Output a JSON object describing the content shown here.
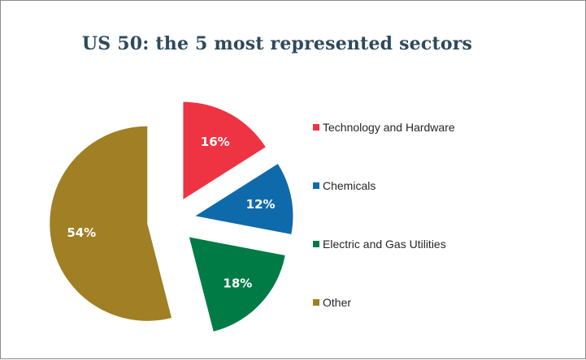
{
  "chart_data": {
    "type": "pie",
    "title": "US 50: the 5 most represented sectors",
    "categories": [
      "Technology and Hardware",
      "Chemicals",
      "Electric and Gas Utilities",
      "Other"
    ],
    "values": [
      16,
      12,
      18,
      54
    ],
    "labels": [
      "16%",
      "12%",
      "18%",
      "54%"
    ],
    "colors": [
      "#ee3342",
      "#0f6aab",
      "#007b45",
      "#a07f25"
    ],
    "exploded": true,
    "legend_position": "right"
  }
}
